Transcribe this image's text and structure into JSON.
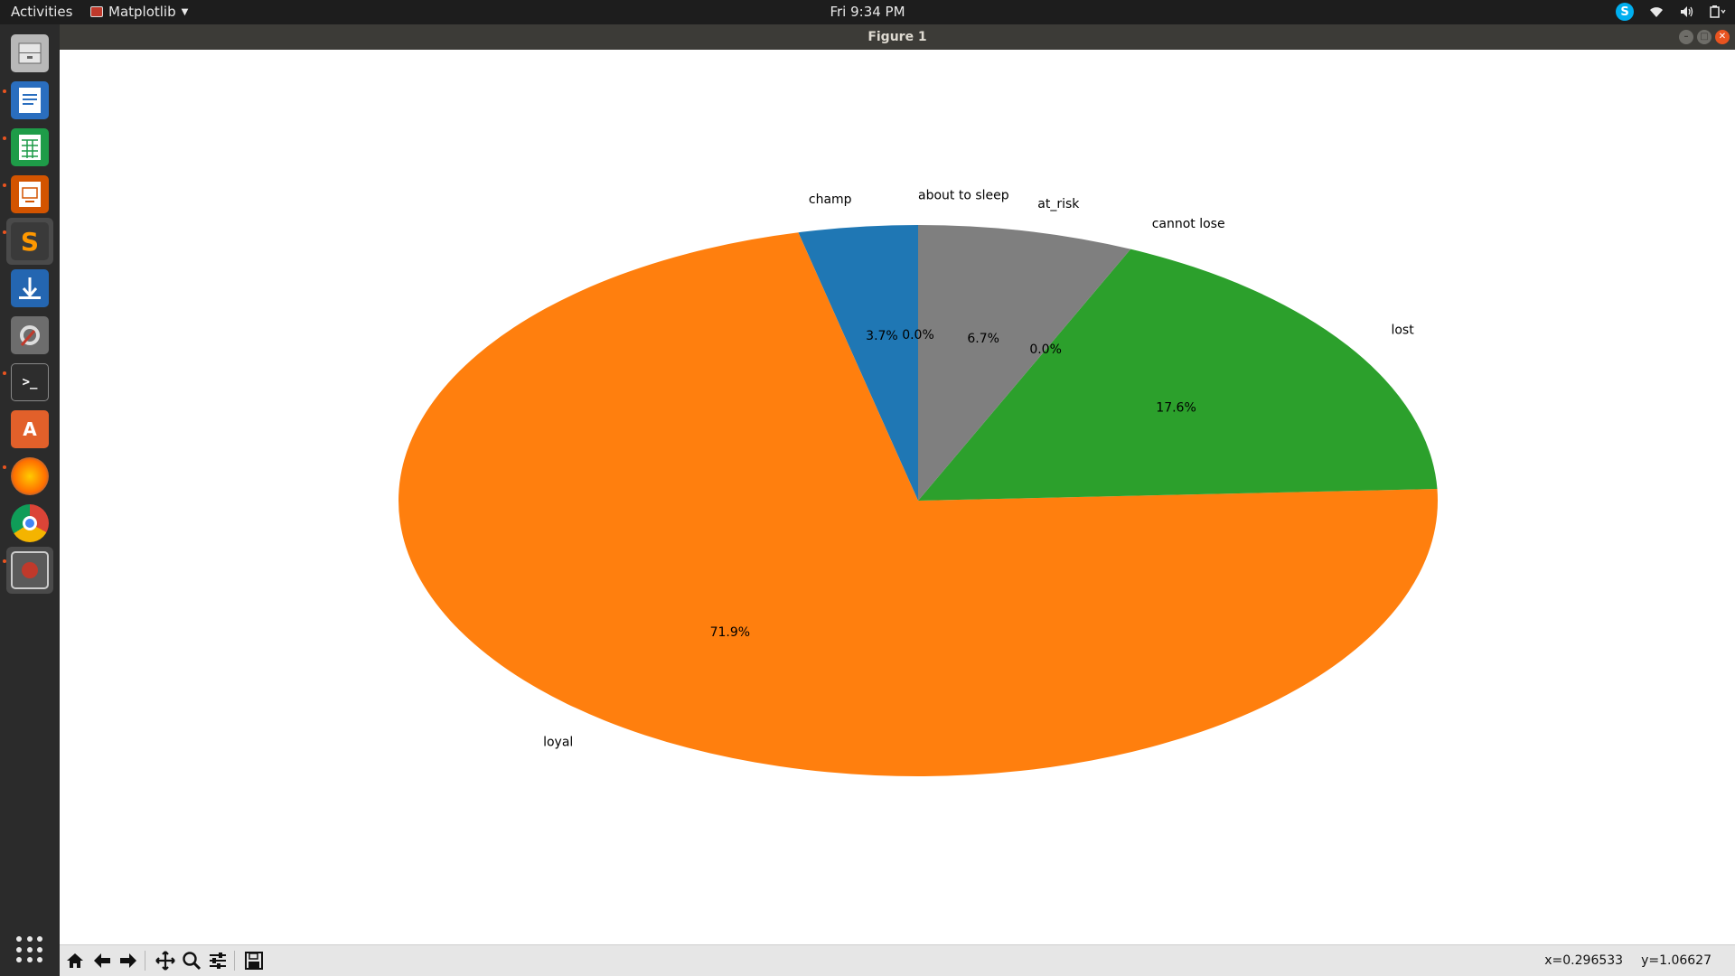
{
  "topbar": {
    "activities": "Activities",
    "app_name": "Matplotlib",
    "clock": "Fri  9:34 PM"
  },
  "window": {
    "title": "Figure 1"
  },
  "dock": {
    "items": [
      {
        "name": "files",
        "color": "#9a9a9a"
      },
      {
        "name": "libreoffice-writer",
        "color": "#2a6ebf"
      },
      {
        "name": "libreoffice-calc",
        "color": "#1e9c48"
      },
      {
        "name": "libreoffice-impress",
        "color": "#d35400"
      },
      {
        "name": "sublime-text",
        "color": "#3a3a3a"
      },
      {
        "name": "transmission",
        "color": "#2466b1"
      },
      {
        "name": "system-tools",
        "color": "#777777"
      },
      {
        "name": "terminal",
        "color": "#2d2d2d"
      },
      {
        "name": "ubuntu-software",
        "color": "#e2602a"
      },
      {
        "name": "firefox",
        "color": "#e66000"
      },
      {
        "name": "chrome",
        "color": "#4285f4"
      },
      {
        "name": "figure-window",
        "color": "#5a5a5a"
      }
    ]
  },
  "chart_data": {
    "type": "pie",
    "start_angle_deg": 90,
    "direction": "counterclockwise",
    "slices": [
      {
        "label": "champ",
        "pct": 3.7,
        "pct_label": "3.7%",
        "color": "#1f77b4"
      },
      {
        "label": "loyal",
        "pct": 71.9,
        "pct_label": "71.9%",
        "color": "#ff7f0e"
      },
      {
        "label": "lost",
        "pct": 17.6,
        "pct_label": "17.6%",
        "color": "#2ca02c"
      },
      {
        "label": "at_risk",
        "pct": 6.7,
        "pct_label": "6.7%",
        "color": "#7f7f7f"
      }
    ],
    "zero_labels_clockwise_side": "0.0%",
    "zero_labels_right_side": "0.0%",
    "overlapping_labels_top": "about to sleep",
    "overlapping_labels_right": "cannot lose"
  },
  "toolbar": {
    "x_readout": "x=0.296533",
    "y_readout": "y=1.06627"
  }
}
